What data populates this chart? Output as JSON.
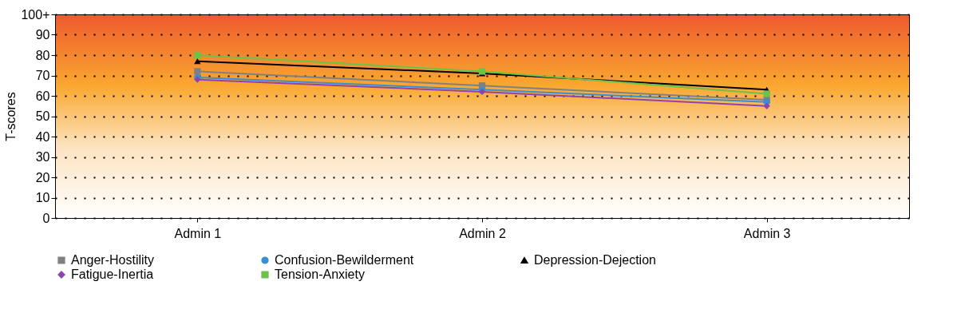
{
  "chart_data": {
    "type": "line",
    "ylabel": "T-scores",
    "categories": [
      "Admin 1",
      "Admin 2",
      "Admin 3"
    ],
    "series": [
      {
        "name": "Anger-Hostility",
        "color": "#808080",
        "marker": "square",
        "values": [
          72,
          65,
          58
        ]
      },
      {
        "name": "Confusion-Bewilderment",
        "color": "#3a8fd0",
        "marker": "circle",
        "values": [
          69,
          63,
          57
        ]
      },
      {
        "name": "Depression-Dejection",
        "color": "#000000",
        "marker": "triangle",
        "values": [
          77,
          71,
          63
        ]
      },
      {
        "name": "Fatigue-Inertia",
        "color": "#8e44b0",
        "marker": "diamond",
        "values": [
          68,
          62,
          55
        ]
      },
      {
        "name": "Tension-Anxiety",
        "color": "#6cc24a",
        "marker": "square",
        "values": [
          80,
          72,
          61
        ]
      }
    ],
    "ylim": [
      0,
      100
    ],
    "yticks": [
      0,
      10,
      20,
      30,
      40,
      50,
      60,
      70,
      80,
      90,
      {
        "value": 100,
        "label": "100+"
      }
    ],
    "grid": "y",
    "legend": "bottom",
    "line_style": "solid"
  }
}
